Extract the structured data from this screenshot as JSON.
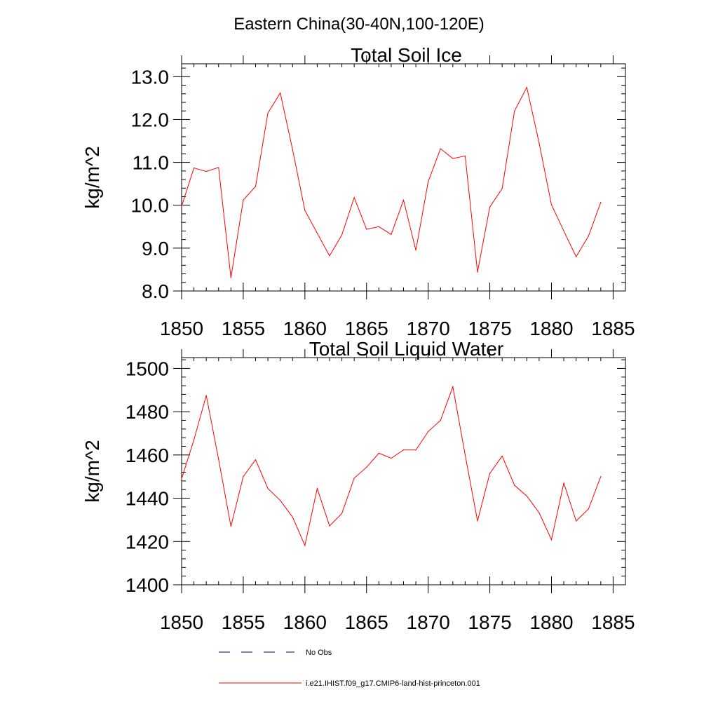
{
  "figure_title": "Eastern China(30-40N,100-120E)",
  "colors": {
    "series": "#ff0000",
    "obs": "#000080",
    "axes": "#000000"
  },
  "chart_data": [
    {
      "type": "line",
      "title": "Total Soil Ice",
      "xlabel": "",
      "ylabel": "kg/m^2",
      "xlim": [
        1850,
        1886
      ],
      "ylim": [
        8.0,
        13.3
      ],
      "x_ticks": [
        1850,
        1855,
        1860,
        1865,
        1870,
        1875,
        1880,
        1885
      ],
      "x_tick_labels": [
        "1850",
        "1855",
        "1860",
        "1865",
        "1870",
        "1875",
        "1880",
        "1885"
      ],
      "y_ticks": [
        8,
        9,
        10,
        11,
        12,
        13
      ],
      "y_tick_labels": [
        "8.0",
        "9.0",
        "10.0",
        "11.0",
        "12.0",
        "13.0"
      ],
      "grid": false,
      "series": [
        {
          "name": "i.e21.IHIST.f09_g17.CMIP6-land-hist-princeton.001",
          "x": [
            1850,
            1851,
            1852,
            1853,
            1854,
            1855,
            1856,
            1857,
            1858,
            1859,
            1860,
            1861,
            1862,
            1863,
            1864,
            1865,
            1866,
            1867,
            1868,
            1869,
            1870,
            1871,
            1872,
            1873,
            1874,
            1875,
            1876,
            1877,
            1878,
            1879,
            1880,
            1881,
            1882,
            1883,
            1884
          ],
          "values": [
            9.98,
            10.87,
            10.79,
            10.88,
            8.31,
            10.12,
            10.44,
            12.15,
            12.62,
            11.3,
            9.88,
            9.35,
            8.82,
            9.31,
            10.18,
            9.44,
            9.5,
            9.32,
            10.12,
            8.95,
            10.55,
            11.32,
            11.09,
            11.15,
            8.44,
            9.96,
            10.39,
            12.2,
            12.75,
            11.45,
            10.01,
            9.4,
            8.8,
            9.28,
            10.07
          ]
        }
      ]
    },
    {
      "type": "line",
      "title": "Total Soil Liquid Water",
      "xlabel": "",
      "ylabel": "kg/m^2",
      "xlim": [
        1850,
        1886
      ],
      "ylim": [
        1400,
        1505
      ],
      "x_ticks": [
        1850,
        1855,
        1860,
        1865,
        1870,
        1875,
        1880,
        1885
      ],
      "x_tick_labels": [
        "1850",
        "1855",
        "1860",
        "1865",
        "1870",
        "1875",
        "1880",
        "1885"
      ],
      "y_ticks": [
        1400,
        1420,
        1440,
        1460,
        1480,
        1500
      ],
      "y_tick_labels": [
        "1400",
        "1420",
        "1440",
        "1460",
        "1480",
        "1500"
      ],
      "grid": false,
      "series": [
        {
          "name": "i.e21.IHIST.f09_g17.CMIP6-land-hist-princeton.001",
          "x": [
            1850,
            1851,
            1852,
            1853,
            1854,
            1855,
            1856,
            1857,
            1858,
            1859,
            1860,
            1861,
            1862,
            1863,
            1864,
            1865,
            1866,
            1867,
            1868,
            1869,
            1870,
            1871,
            1872,
            1873,
            1874,
            1875,
            1876,
            1877,
            1878,
            1879,
            1880,
            1881,
            1882,
            1883,
            1884
          ],
          "values": [
            1449,
            1467,
            1487.5,
            1458,
            1427,
            1450,
            1457.8,
            1444.5,
            1439,
            1431.3,
            1418.2,
            1444.5,
            1427.2,
            1433,
            1449.3,
            1454.3,
            1460.8,
            1458.5,
            1462.3,
            1462.3,
            1470.8,
            1476,
            1491.5,
            1460,
            1429.5,
            1451.5,
            1459.5,
            1446,
            1441,
            1433.3,
            1420.8,
            1447,
            1429.5,
            1435,
            1450
          ]
        }
      ]
    }
  ],
  "legend": {
    "placement": "bottom",
    "items": [
      {
        "label": "No Obs",
        "style": "dashed"
      },
      {
        "label": "i.e21.IHIST.f09_g17.CMIP6-land-hist-princeton.001",
        "style": "solid"
      }
    ]
  }
}
